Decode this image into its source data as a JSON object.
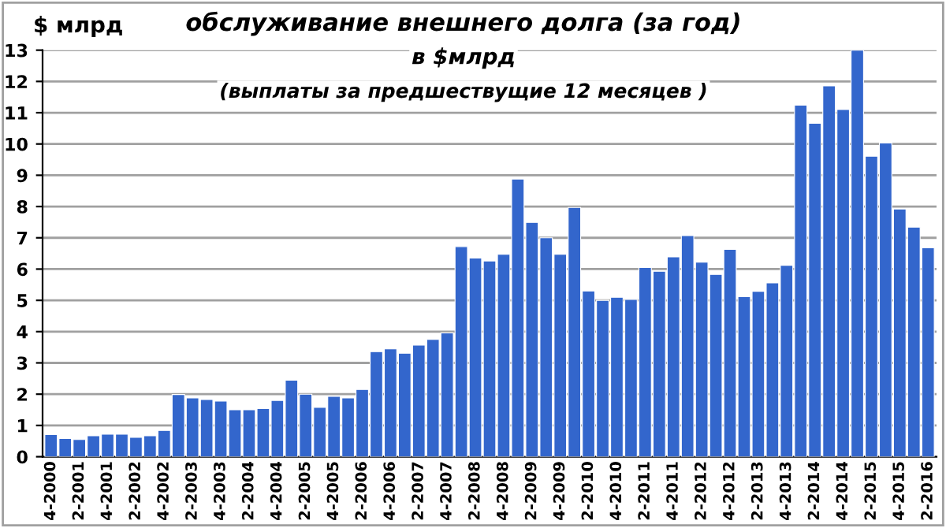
{
  "chart_data": {
    "type": "bar",
    "title": "обслуживание внешнего долга (за год)",
    "subtitle": "в $млрд",
    "annotations": [
      "(выплаты за предшествущие 12 месяцев )"
    ],
    "ylabel": "$ млрд",
    "categories": [
      "4-2000",
      null,
      "2-2001",
      null,
      "4-2001",
      null,
      "2-2002",
      null,
      "4-2002",
      null,
      "2-2003",
      null,
      "4-2003",
      null,
      "2-2004",
      null,
      "4-2004",
      null,
      "2-2005",
      null,
      "4-2005",
      null,
      "2-2006",
      null,
      "4-2006",
      null,
      "2-2007",
      null,
      "4-2007",
      null,
      "2-2008",
      null,
      "4-2008",
      null,
      "2-2009",
      null,
      "4-2009",
      null,
      "2-2010",
      null,
      "4-2010",
      null,
      "2-2011",
      null,
      "4-2011",
      null,
      "2-2012",
      null,
      "4-2012",
      null,
      "2-2013",
      null,
      "4-2013",
      null,
      "2-2014",
      null,
      "4-2014",
      null,
      "2-2015",
      null,
      "4-2015",
      null,
      "2-2016"
    ],
    "values": [
      0.71,
      0.58,
      0.55,
      0.67,
      0.72,
      0.72,
      0.62,
      0.67,
      0.84,
      1.99,
      1.88,
      1.83,
      1.78,
      1.5,
      1.5,
      1.54,
      1.8,
      2.45,
      2.0,
      1.58,
      1.93,
      1.88,
      2.15,
      3.36,
      3.45,
      3.31,
      3.57,
      3.75,
      3.96,
      6.72,
      6.35,
      6.26,
      6.47,
      8.88,
      7.49,
      7.0,
      6.47,
      7.97,
      5.3,
      5.0,
      5.1,
      5.03,
      6.05,
      5.93,
      6.39,
      7.07,
      6.22,
      5.83,
      6.63,
      5.12,
      5.29,
      5.56,
      6.12,
      11.24,
      10.66,
      11.86,
      11.1,
      13.0,
      9.61,
      10.03,
      7.92,
      7.34,
      6.68
    ],
    "color": "#3366cc",
    "ylim": [
      0,
      13
    ],
    "yticks": [
      0,
      1,
      2,
      3,
      4,
      5,
      6,
      7,
      8,
      9,
      10,
      11,
      12,
      13
    ],
    "grid": "y",
    "legend": false
  }
}
